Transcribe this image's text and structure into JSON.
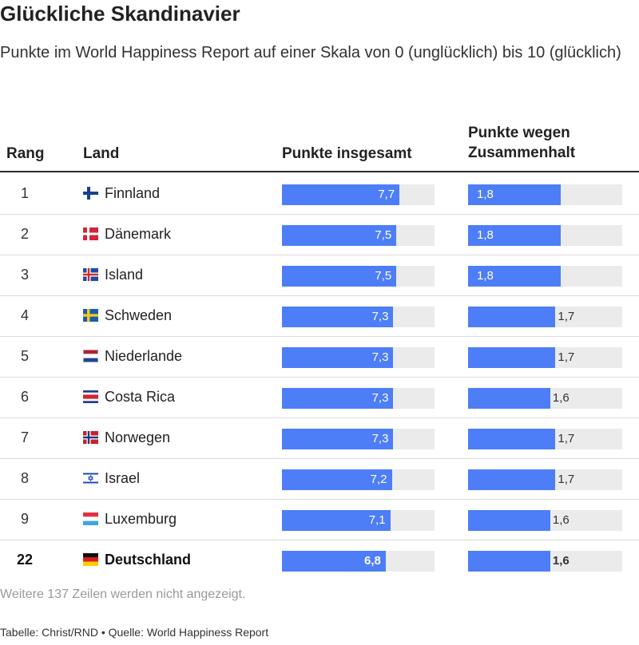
{
  "title": "Glückliche Skandinavier",
  "subtitle": "Punkte im World Happiness Report auf einer Skala von 0 (unglücklich) bis 10 (glücklich)",
  "headers": {
    "rank": "Rang",
    "country": "Land",
    "total": "Punkte insgesamt",
    "cohesion_line1": "Punkte wegen",
    "cohesion_line2": "Zusammenhalt"
  },
  "chart_data": {
    "type": "table",
    "total_scale_max": 10,
    "cohesion_scale_max": 3,
    "rows": [
      {
        "rank": "1",
        "country": "Finnland",
        "flag": "finland-flag",
        "total": 7.7,
        "total_label": "7,7",
        "cohesion": 1.8,
        "cohesion_label": "1,8"
      },
      {
        "rank": "2",
        "country": "Dänemark",
        "flag": "denmark-flag",
        "total": 7.5,
        "total_label": "7,5",
        "cohesion": 1.8,
        "cohesion_label": "1,8"
      },
      {
        "rank": "3",
        "country": "Island",
        "flag": "iceland-flag",
        "total": 7.5,
        "total_label": "7,5",
        "cohesion": 1.8,
        "cohesion_label": "1,8"
      },
      {
        "rank": "4",
        "country": "Schweden",
        "flag": "sweden-flag",
        "total": 7.3,
        "total_label": "7,3",
        "cohesion": 1.7,
        "cohesion_label": "1,7"
      },
      {
        "rank": "5",
        "country": "Niederlande",
        "flag": "netherlands-flag",
        "total": 7.3,
        "total_label": "7,3",
        "cohesion": 1.7,
        "cohesion_label": "1,7"
      },
      {
        "rank": "6",
        "country": "Costa Rica",
        "flag": "costa-rica-flag",
        "total": 7.3,
        "total_label": "7,3",
        "cohesion": 1.6,
        "cohesion_label": "1,6"
      },
      {
        "rank": "7",
        "country": "Norwegen",
        "flag": "norway-flag",
        "total": 7.3,
        "total_label": "7,3",
        "cohesion": 1.7,
        "cohesion_label": "1,7"
      },
      {
        "rank": "8",
        "country": "Israel",
        "flag": "israel-flag",
        "total": 7.2,
        "total_label": "7,2",
        "cohesion": 1.7,
        "cohesion_label": "1,7"
      },
      {
        "rank": "9",
        "country": "Luxemburg",
        "flag": "luxembourg-flag",
        "total": 7.1,
        "total_label": "7,1",
        "cohesion": 1.6,
        "cohesion_label": "1,6"
      },
      {
        "rank": "22",
        "country": "Deutschland",
        "flag": "germany-flag",
        "total": 6.8,
        "total_label": "6,8",
        "cohesion": 1.6,
        "cohesion_label": "1,6",
        "highlight": true
      }
    ]
  },
  "colors": {
    "bar": "#4d7ef7",
    "track": "#ebebeb"
  },
  "more_rows": "Weitere 137 Zeilen werden nicht angezeigt.",
  "footer": "Tabelle: Christ/RND • Quelle: World Happiness Report"
}
